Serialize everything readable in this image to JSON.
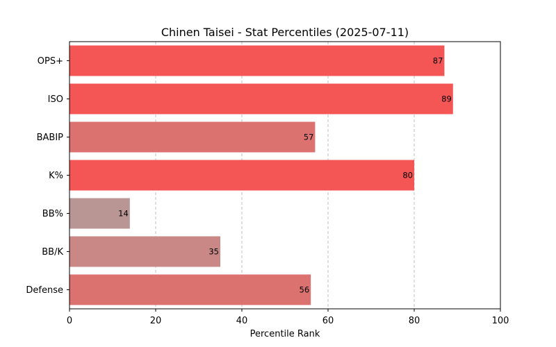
{
  "chart_data": {
    "type": "bar",
    "orientation": "horizontal",
    "title": "Chinen Taisei - Stat Percentiles (2025-07-11)",
    "xlabel": "Percentile Rank",
    "ylabel": "",
    "xlim": [
      0,
      100
    ],
    "xticks": [
      0,
      20,
      40,
      60,
      80,
      100
    ],
    "grid": "x-dashed",
    "categories": [
      "OPS+",
      "ISO",
      "BABIP",
      "K%",
      "BB%",
      "BB/K",
      "Defense"
    ],
    "values": [
      87,
      89,
      57,
      80,
      14,
      35,
      56
    ],
    "colors": [
      "#f45555",
      "#f45555",
      "#db7270",
      "#f45555",
      "#b99593",
      "#c98886",
      "#db7270"
    ]
  }
}
